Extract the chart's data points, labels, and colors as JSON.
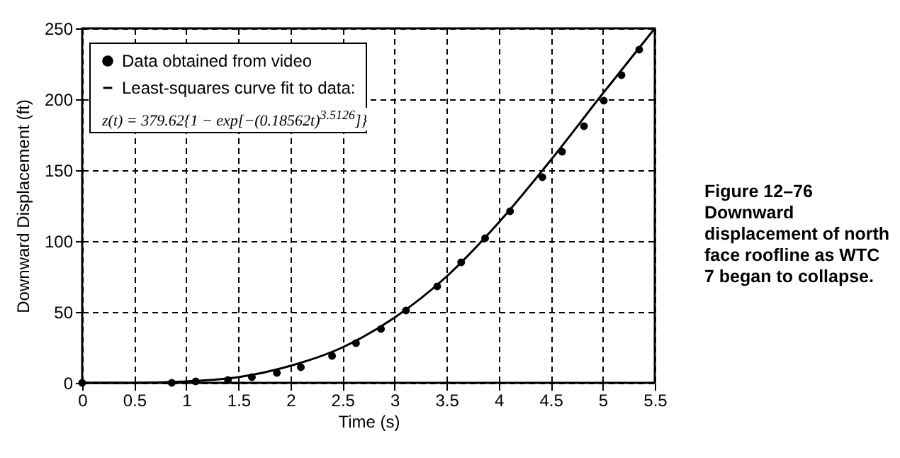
{
  "chart_data": {
    "type": "scatter",
    "xlabel": "Time (s)",
    "ylabel": "Downward Displacement (ft)",
    "xlim": [
      0,
      5.5
    ],
    "xticks": [
      0,
      0.5,
      1,
      1.5,
      2,
      2.5,
      3,
      3.5,
      4,
      4.5,
      5,
      5.5
    ],
    "ylim": [
      0,
      250
    ],
    "yticks": [
      0,
      50,
      100,
      150,
      200,
      250
    ],
    "grid": true,
    "legend": "top left",
    "annotations": [
      "z(t) = 379.62{1 − exp[−(0.18562t)$^{3.5126}$]}",
      "Figure 12–76 Downward displacement of north face roofline as WTC 7 began to collapse."
    ],
    "series": [
      {
        "name": "Data obtained from video",
        "color": "#000000",
        "marker": "circle",
        "x": [
          0,
          0.86,
          1.09,
          1.4,
          1.63,
          1.87,
          2.1,
          2.4,
          2.63,
          2.87,
          3.11,
          3.41,
          3.64,
          3.87,
          4.11,
          4.42,
          4.61,
          4.82,
          5.01,
          5.18,
          5.35
        ],
        "values": [
          0,
          0,
          1,
          2,
          4,
          7,
          11,
          19,
          28,
          38,
          51,
          68,
          85,
          102,
          121,
          145,
          163,
          181,
          199,
          217,
          235
        ]
      },
      {
        "name": "Least-squares curve fit to data:",
        "type": "line",
        "color": "#000000",
        "line_style": "solid",
        "x": [
          0,
          0.5,
          1,
          1.5,
          2,
          2.5,
          3,
          3.5,
          4,
          4.5,
          5,
          5.5
        ],
        "values": [
          0,
          0,
          1,
          4,
          12,
          25,
          46,
          75,
          113,
          157,
          204,
          250
        ]
      }
    ]
  }
}
